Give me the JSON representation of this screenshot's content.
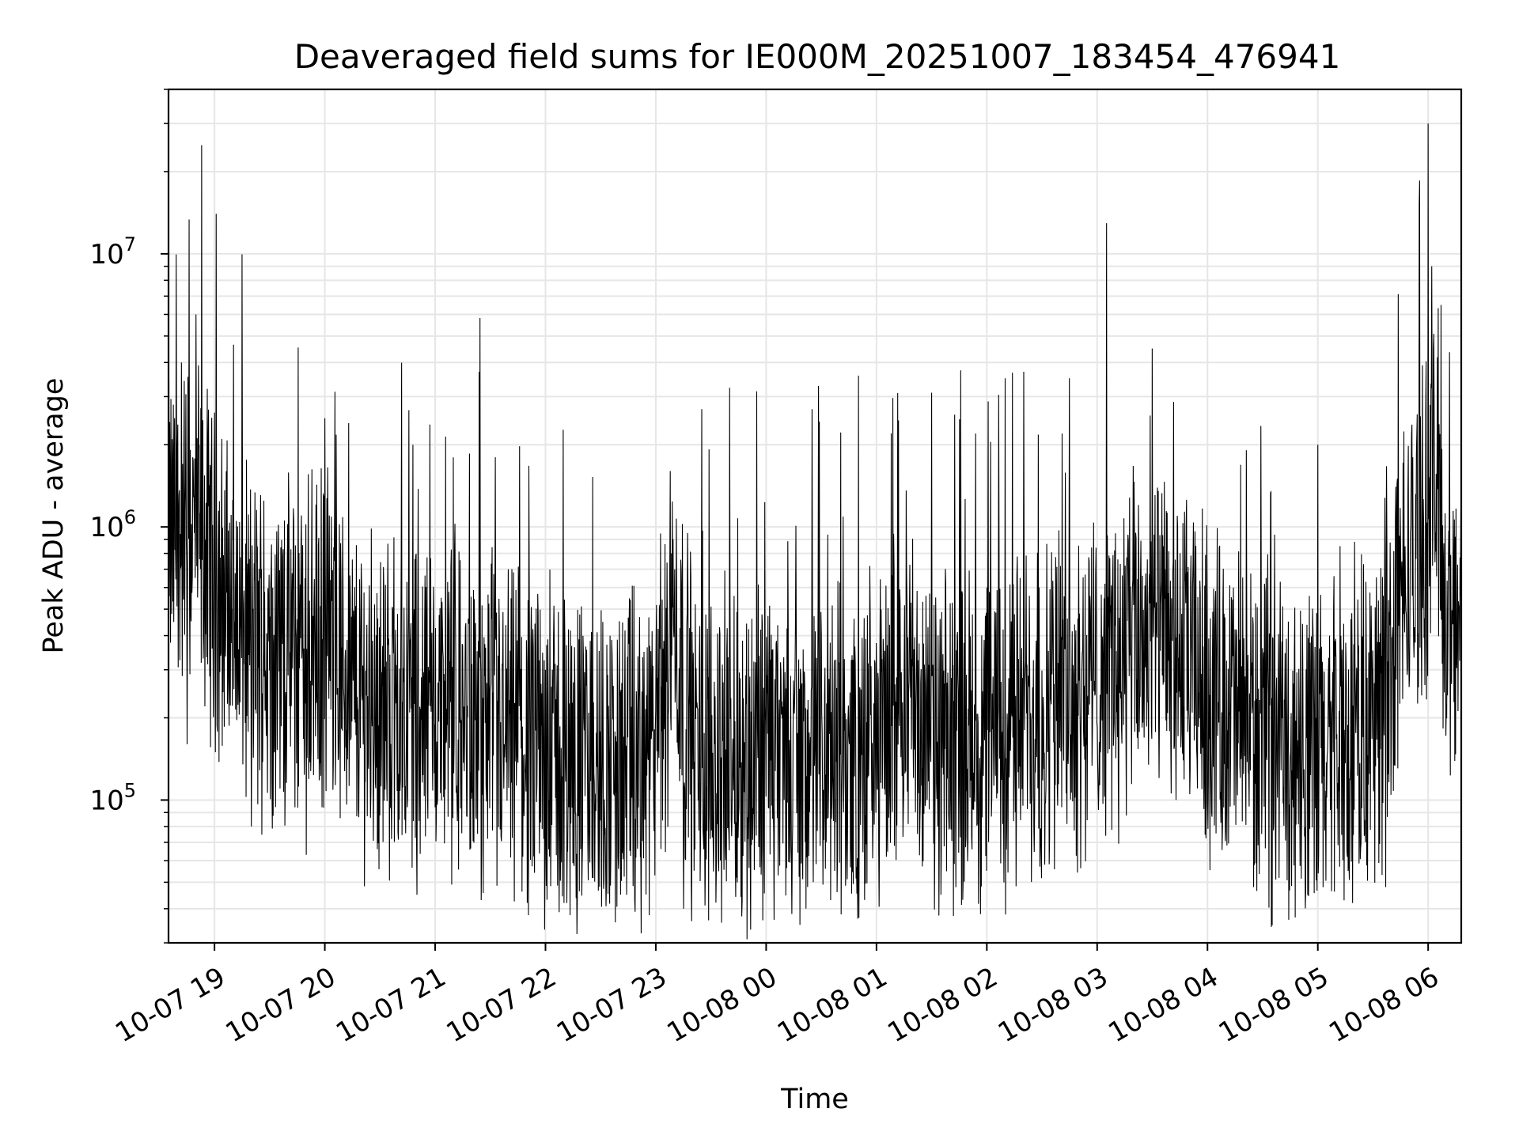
{
  "chart_data": {
    "type": "line",
    "title": "Deaveraged field sums for IE000M_20251007_183454_476941",
    "xlabel": "Time",
    "ylabel": "Peak ADU - average",
    "yscale": "log",
    "ylim": [
      30000,
      40000000
    ],
    "xlim": [
      "2025-10-07 18:35",
      "2025-10-08 06:18"
    ],
    "grid": true,
    "line_color": "#000000",
    "x_ticks": [
      {
        "t": "2025-10-07 19:00",
        "label": "10-07 19"
      },
      {
        "t": "2025-10-07 20:00",
        "label": "10-07 20"
      },
      {
        "t": "2025-10-07 21:00",
        "label": "10-07 21"
      },
      {
        "t": "2025-10-07 22:00",
        "label": "10-07 22"
      },
      {
        "t": "2025-10-07 23:00",
        "label": "10-07 23"
      },
      {
        "t": "2025-10-08 00:00",
        "label": "10-08 00"
      },
      {
        "t": "2025-10-08 01:00",
        "label": "10-08 01"
      },
      {
        "t": "2025-10-08 02:00",
        "label": "10-08 02"
      },
      {
        "t": "2025-10-08 03:00",
        "label": "10-08 03"
      },
      {
        "t": "2025-10-08 04:00",
        "label": "10-08 04"
      },
      {
        "t": "2025-10-08 05:00",
        "label": "10-08 05"
      },
      {
        "t": "2025-10-08 06:00",
        "label": "10-08 06"
      }
    ],
    "y_ticks": [
      {
        "v": 100000,
        "mantissa": "10",
        "exp": "5"
      },
      {
        "v": 1000000,
        "mantissa": "10",
        "exp": "6"
      },
      {
        "v": 10000000,
        "mantissa": "10",
        "exp": "7"
      }
    ],
    "series": [
      {
        "baseline": [
          [
            "2025-10-07 18:35",
            900000
          ],
          [
            "2025-10-07 18:50",
            1000000
          ],
          [
            "2025-10-07 19:00",
            650000
          ],
          [
            "2025-10-07 19:15",
            400000
          ],
          [
            "2025-10-07 19:30",
            350000
          ],
          [
            "2025-10-07 19:45",
            350000
          ],
          [
            "2025-10-07 20:00",
            380000
          ],
          [
            "2025-10-07 20:15",
            250000
          ],
          [
            "2025-10-07 20:30",
            220000
          ],
          [
            "2025-10-07 20:45",
            230000
          ],
          [
            "2025-10-07 21:00",
            220000
          ],
          [
            "2025-10-07 21:30",
            170000
          ],
          [
            "2025-10-07 22:00",
            150000
          ],
          [
            "2025-10-07 22:30",
            130000
          ],
          [
            "2025-10-07 23:00",
            140000
          ],
          [
            "2025-10-07 23:10",
            500000
          ],
          [
            "2025-10-07 23:20",
            150000
          ],
          [
            "2025-10-08 00:00",
            140000
          ],
          [
            "2025-10-08 00:30",
            140000
          ],
          [
            "2025-10-08 01:00",
            140000
          ],
          [
            "2025-10-08 01:15",
            300000
          ],
          [
            "2025-10-08 01:30",
            150000
          ],
          [
            "2025-10-08 02:00",
            170000
          ],
          [
            "2025-10-08 02:30",
            220000
          ],
          [
            "2025-10-08 03:00",
            280000
          ],
          [
            "2025-10-08 03:30",
            420000
          ],
          [
            "2025-10-08 03:45",
            320000
          ],
          [
            "2025-10-08 04:00",
            260000
          ],
          [
            "2025-10-08 04:30",
            170000
          ],
          [
            "2025-10-08 05:00",
            140000
          ],
          [
            "2025-10-08 05:30",
            180000
          ],
          [
            "2025-10-08 05:45",
            550000
          ],
          [
            "2025-10-08 06:00",
            1000000
          ],
          [
            "2025-10-08 06:05",
            1600000
          ],
          [
            "2025-10-08 06:10",
            450000
          ],
          [
            "2025-10-08 06:18",
            420000
          ]
        ],
        "spikes": [
          [
            "2025-10-07 18:53",
            25000000
          ],
          [
            "2025-10-07 19:01",
            14000000
          ],
          [
            "2025-10-07 18:50",
            6000000
          ],
          [
            "2025-10-07 18:42",
            4000000
          ],
          [
            "2025-10-07 20:00",
            2500000
          ],
          [
            "2025-10-07 20:13",
            2400000
          ],
          [
            "2025-10-07 20:48",
            2000000
          ],
          [
            "2025-10-07 21:24",
            3700000
          ],
          [
            "2025-10-07 22:10",
            2200000
          ],
          [
            "2025-10-07 23:25",
            2700000
          ],
          [
            "2025-10-08 00:25",
            2700000
          ],
          [
            "2025-10-08 01:08",
            2200000
          ],
          [
            "2025-10-08 01:30",
            3100000
          ],
          [
            "2025-10-08 02:10",
            3500000
          ],
          [
            "2025-10-08 02:20",
            3700000
          ],
          [
            "2025-10-08 02:45",
            3500000
          ],
          [
            "2025-10-08 03:30",
            4500000
          ],
          [
            "2025-10-08 05:00",
            2000000
          ],
          [
            "2025-10-08 06:00",
            30000000
          ],
          [
            "2025-10-08 06:02",
            9000000
          ],
          [
            "2025-10-08 06:07",
            6500000
          ]
        ],
        "dips": [
          [
            "2025-10-07 18:45",
            160000
          ],
          [
            "2025-10-07 19:20",
            80000
          ],
          [
            "2025-10-07 19:50",
            63000
          ],
          [
            "2025-10-07 20:50",
            45000
          ],
          [
            "2025-10-07 21:25",
            43000
          ],
          [
            "2025-10-07 21:50",
            42000
          ],
          [
            "2025-10-07 22:10",
            42000
          ],
          [
            "2025-10-07 23:15",
            40000
          ],
          [
            "2025-10-08 00:35",
            43000
          ],
          [
            "2025-10-08 01:35",
            45000
          ],
          [
            "2025-10-08 04:25",
            48000
          ],
          [
            "2025-10-08 05:37",
            48000
          ]
        ]
      }
    ]
  }
}
